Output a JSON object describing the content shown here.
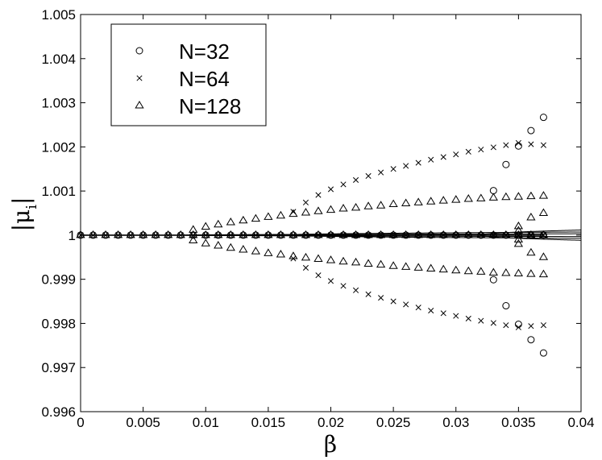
{
  "chart_data": {
    "type": "scatter",
    "xlabel": "β",
    "ylabel": "|μ",
    "ylabel_subscript": "i",
    "ylabel_close": "|",
    "xlim": [
      0,
      0.04
    ],
    "ylim": [
      0.996,
      1.005
    ],
    "x_ticks": [
      0,
      0.005,
      0.01,
      0.015,
      0.02,
      0.025,
      0.03,
      0.035,
      0.04
    ],
    "x_tick_labels": [
      "0",
      "0.005",
      "0.01",
      "0.015",
      "0.02",
      "0.025",
      "0.03",
      "0.035",
      "0.04"
    ],
    "y_ticks": [
      0.996,
      0.997,
      0.998,
      0.999,
      1,
      1.001,
      1.002,
      1.003,
      1.004,
      1.005
    ],
    "y_tick_labels": [
      "0.996",
      "0.997",
      "0.998",
      "0.999",
      "1",
      "1.001",
      "1.002",
      "1.003",
      "1.004",
      "1.005"
    ],
    "grid": false,
    "legend_position": "top-left",
    "series": [
      {
        "name": "N=32",
        "marker": "circle",
        "points": [
          [
            0,
            1
          ],
          [
            0.001,
            1
          ],
          [
            0.002,
            1
          ],
          [
            0.003,
            1
          ],
          [
            0.004,
            1
          ],
          [
            0.005,
            1
          ],
          [
            0.006,
            1
          ],
          [
            0.007,
            1
          ],
          [
            0.008,
            1
          ],
          [
            0.009,
            1
          ],
          [
            0.01,
            1
          ],
          [
            0.011,
            1
          ],
          [
            0.012,
            1
          ],
          [
            0.013,
            1
          ],
          [
            0.014,
            1
          ],
          [
            0.015,
            1
          ],
          [
            0.016,
            1
          ],
          [
            0.017,
            1
          ],
          [
            0.018,
            1
          ],
          [
            0.019,
            1
          ],
          [
            0.02,
            1
          ],
          [
            0.021,
            1
          ],
          [
            0.022,
            1
          ],
          [
            0.023,
            1
          ],
          [
            0.024,
            1
          ],
          [
            0.025,
            1
          ],
          [
            0.026,
            1
          ],
          [
            0.027,
            1
          ],
          [
            0.028,
            1
          ],
          [
            0.029,
            1
          ],
          [
            0.03,
            1
          ],
          [
            0.031,
            1
          ],
          [
            0.032,
            1
          ],
          [
            0.033,
            1
          ],
          [
            0.034,
            1
          ],
          [
            0.035,
            1
          ],
          [
            0.036,
            1
          ],
          [
            0.037,
            1
          ],
          [
            0.033,
            1.00101
          ],
          [
            0.034,
            1.0016
          ],
          [
            0.035,
            1.00202
          ],
          [
            0.036,
            1.00237
          ],
          [
            0.037,
            1.00267
          ],
          [
            0.033,
            0.99899
          ],
          [
            0.034,
            0.9984
          ],
          [
            0.035,
            0.99798
          ],
          [
            0.036,
            0.99763
          ],
          [
            0.037,
            0.99733
          ]
        ]
      },
      {
        "name": "N=64",
        "marker": "x",
        "points": [
          [
            0,
            1
          ],
          [
            0.001,
            1
          ],
          [
            0.002,
            1
          ],
          [
            0.003,
            1
          ],
          [
            0.004,
            1
          ],
          [
            0.005,
            1
          ],
          [
            0.006,
            1
          ],
          [
            0.007,
            1
          ],
          [
            0.008,
            1
          ],
          [
            0.009,
            1
          ],
          [
            0.01,
            1
          ],
          [
            0.011,
            1
          ],
          [
            0.012,
            1
          ],
          [
            0.013,
            1
          ],
          [
            0.014,
            1
          ],
          [
            0.015,
            1
          ],
          [
            0.016,
            1
          ],
          [
            0.017,
            1
          ],
          [
            0.018,
            1
          ],
          [
            0.019,
            1
          ],
          [
            0.02,
            1
          ],
          [
            0.021,
            1
          ],
          [
            0.022,
            1
          ],
          [
            0.023,
            1
          ],
          [
            0.024,
            1
          ],
          [
            0.025,
            1
          ],
          [
            0.026,
            1
          ],
          [
            0.027,
            1
          ],
          [
            0.028,
            1
          ],
          [
            0.029,
            1
          ],
          [
            0.03,
            1
          ],
          [
            0.031,
            1
          ],
          [
            0.032,
            1
          ],
          [
            0.033,
            1
          ],
          [
            0.034,
            1
          ],
          [
            0.035,
            1
          ],
          [
            0.036,
            1
          ],
          [
            0.037,
            1
          ],
          [
            0.017,
            1.00053
          ],
          [
            0.018,
            1.00074
          ],
          [
            0.019,
            1.00091
          ],
          [
            0.02,
            1.00104
          ],
          [
            0.021,
            1.00115
          ],
          [
            0.022,
            1.00125
          ],
          [
            0.023,
            1.00134
          ],
          [
            0.024,
            1.00142
          ],
          [
            0.025,
            1.0015
          ],
          [
            0.026,
            1.00157
          ],
          [
            0.027,
            1.00164
          ],
          [
            0.028,
            1.00171
          ],
          [
            0.029,
            1.00177
          ],
          [
            0.03,
            1.00183
          ],
          [
            0.031,
            1.00189
          ],
          [
            0.032,
            1.00194
          ],
          [
            0.033,
            1.00199
          ],
          [
            0.034,
            1.00204
          ],
          [
            0.035,
            1.00209
          ],
          [
            0.036,
            1.00206
          ],
          [
            0.037,
            1.00204
          ],
          [
            0.017,
            0.99947
          ],
          [
            0.018,
            0.99926
          ],
          [
            0.019,
            0.99909
          ],
          [
            0.02,
            0.99896
          ],
          [
            0.021,
            0.99885
          ],
          [
            0.022,
            0.99875
          ],
          [
            0.023,
            0.99866
          ],
          [
            0.024,
            0.99858
          ],
          [
            0.025,
            0.9985
          ],
          [
            0.026,
            0.99843
          ],
          [
            0.027,
            0.99836
          ],
          [
            0.028,
            0.99829
          ],
          [
            0.029,
            0.99823
          ],
          [
            0.03,
            0.99817
          ],
          [
            0.031,
            0.99811
          ],
          [
            0.032,
            0.99806
          ],
          [
            0.033,
            0.99801
          ],
          [
            0.034,
            0.99796
          ],
          [
            0.035,
            0.99791
          ],
          [
            0.036,
            0.99794
          ],
          [
            0.037,
            0.99796
          ]
        ]
      },
      {
        "name": "N=128",
        "marker": "triangle",
        "points": [
          [
            0,
            1
          ],
          [
            0.001,
            1
          ],
          [
            0.002,
            1
          ],
          [
            0.003,
            1
          ],
          [
            0.004,
            1
          ],
          [
            0.005,
            1
          ],
          [
            0.006,
            1
          ],
          [
            0.007,
            1
          ],
          [
            0.008,
            1
          ],
          [
            0.009,
            1
          ],
          [
            0.01,
            1
          ],
          [
            0.011,
            1
          ],
          [
            0.012,
            1
          ],
          [
            0.013,
            1
          ],
          [
            0.014,
            1
          ],
          [
            0.015,
            1
          ],
          [
            0.016,
            1
          ],
          [
            0.017,
            1
          ],
          [
            0.018,
            1
          ],
          [
            0.019,
            1
          ],
          [
            0.02,
            1
          ],
          [
            0.021,
            1
          ],
          [
            0.022,
            1
          ],
          [
            0.023,
            1
          ],
          [
            0.024,
            1
          ],
          [
            0.025,
            1
          ],
          [
            0.026,
            1
          ],
          [
            0.027,
            1
          ],
          [
            0.028,
            1
          ],
          [
            0.029,
            1
          ],
          [
            0.03,
            1
          ],
          [
            0.031,
            1
          ],
          [
            0.032,
            1
          ],
          [
            0.033,
            1
          ],
          [
            0.034,
            1
          ],
          [
            0.035,
            1
          ],
          [
            0.036,
            1
          ],
          [
            0.037,
            1
          ],
          [
            0.009,
            1.00012
          ],
          [
            0.01,
            1.00019
          ],
          [
            0.011,
            1.00024
          ],
          [
            0.012,
            1.00029
          ],
          [
            0.013,
            1.00033
          ],
          [
            0.014,
            1.00037
          ],
          [
            0.015,
            1.00041
          ],
          [
            0.016,
            1.00044
          ],
          [
            0.017,
            1.00048
          ],
          [
            0.018,
            1.00051
          ],
          [
            0.019,
            1.00054
          ],
          [
            0.02,
            1.00057
          ],
          [
            0.021,
            1.0006
          ],
          [
            0.022,
            1.00062
          ],
          [
            0.023,
            1.00065
          ],
          [
            0.024,
            1.00067
          ],
          [
            0.025,
            1.0007
          ],
          [
            0.026,
            1.00072
          ],
          [
            0.027,
            1.00074
          ],
          [
            0.028,
            1.00076
          ],
          [
            0.029,
            1.00078
          ],
          [
            0.03,
            1.0008
          ],
          [
            0.031,
            1.00082
          ],
          [
            0.032,
            1.00083
          ],
          [
            0.033,
            1.00085
          ],
          [
            0.034,
            1.00086
          ],
          [
            0.035,
            1.00087
          ],
          [
            0.036,
            1.00088
          ],
          [
            0.037,
            1.00089
          ],
          [
            0.009,
            0.99988
          ],
          [
            0.01,
            0.99981
          ],
          [
            0.011,
            0.99976
          ],
          [
            0.012,
            0.99971
          ],
          [
            0.013,
            0.99967
          ],
          [
            0.014,
            0.99963
          ],
          [
            0.015,
            0.99959
          ],
          [
            0.016,
            0.99956
          ],
          [
            0.017,
            0.99952
          ],
          [
            0.018,
            0.99949
          ],
          [
            0.019,
            0.99946
          ],
          [
            0.02,
            0.99943
          ],
          [
            0.021,
            0.9994
          ],
          [
            0.022,
            0.99938
          ],
          [
            0.023,
            0.99935
          ],
          [
            0.024,
            0.99933
          ],
          [
            0.025,
            0.9993
          ],
          [
            0.026,
            0.99928
          ],
          [
            0.027,
            0.99926
          ],
          [
            0.028,
            0.99924
          ],
          [
            0.029,
            0.99922
          ],
          [
            0.03,
            0.9992
          ],
          [
            0.031,
            0.99918
          ],
          [
            0.032,
            0.99917
          ],
          [
            0.033,
            0.99915
          ],
          [
            0.034,
            0.99914
          ],
          [
            0.035,
            0.99913
          ],
          [
            0.036,
            0.99912
          ],
          [
            0.037,
            0.99911
          ],
          [
            0.035,
            1.0002
          ],
          [
            0.035,
            1.0001
          ],
          [
            0.035,
            0.9999
          ],
          [
            0.035,
            0.9998
          ],
          [
            0.036,
            1.0004
          ],
          [
            0.036,
            0.9996
          ],
          [
            0.037,
            1.0005
          ],
          [
            0.037,
            0.9995
          ]
        ]
      }
    ],
    "curves": [
      {
        "beta_c": 0.008,
        "amplitude": 0.000175,
        "x_end": 0.04
      },
      {
        "beta_c": 0.016,
        "amplitude": 0.00046,
        "x_end": 0.04
      },
      {
        "beta_c": 0.032,
        "amplitude": 0.0013,
        "x_end": 0.04
      }
    ],
    "unit_line": {
      "y": 1,
      "x_range": [
        0,
        0.037
      ]
    }
  }
}
